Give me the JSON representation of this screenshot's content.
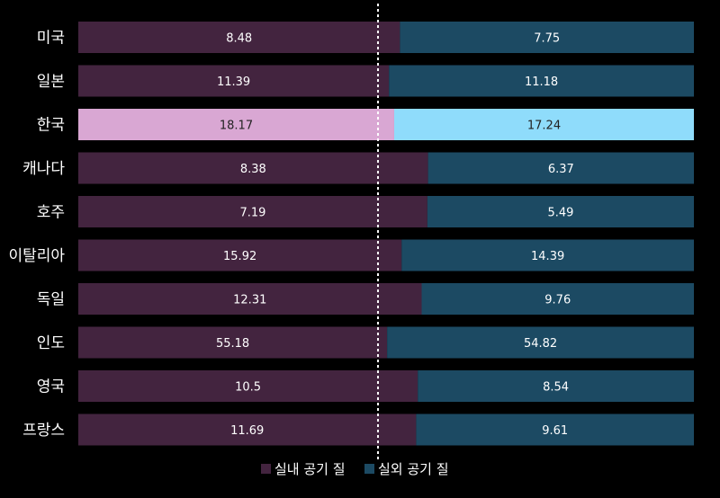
{
  "chart_data": {
    "type": "bar",
    "stacked": "percent",
    "orientation": "horizontal",
    "title": "",
    "categories": [
      "미국",
      "일본",
      "한국",
      "캐나다",
      "호주",
      "이탈리아",
      "독일",
      "인도",
      "영국",
      "프랑스"
    ],
    "series": [
      {
        "name": "실내 공기 질",
        "values": [
          8.48,
          11.39,
          18.17,
          8.38,
          7.19,
          15.92,
          12.31,
          55.18,
          10.5,
          11.69
        ]
      },
      {
        "name": "실외 공기 질",
        "values": [
          7.75,
          11.18,
          17.24,
          6.37,
          5.49,
          14.39,
          9.76,
          54.82,
          8.54,
          9.61
        ]
      }
    ],
    "highlight_category": "한국",
    "reference_line": "50% dashed white vertical line",
    "legend_position": "bottom",
    "grid": false
  },
  "colors": {
    "background": "#000000",
    "series1": "#43243f",
    "series2": "#1c4a63",
    "series1_highlight": "#d9a7d3",
    "series2_highlight": "#8fdcfb",
    "reference_line": "#ffffff"
  }
}
